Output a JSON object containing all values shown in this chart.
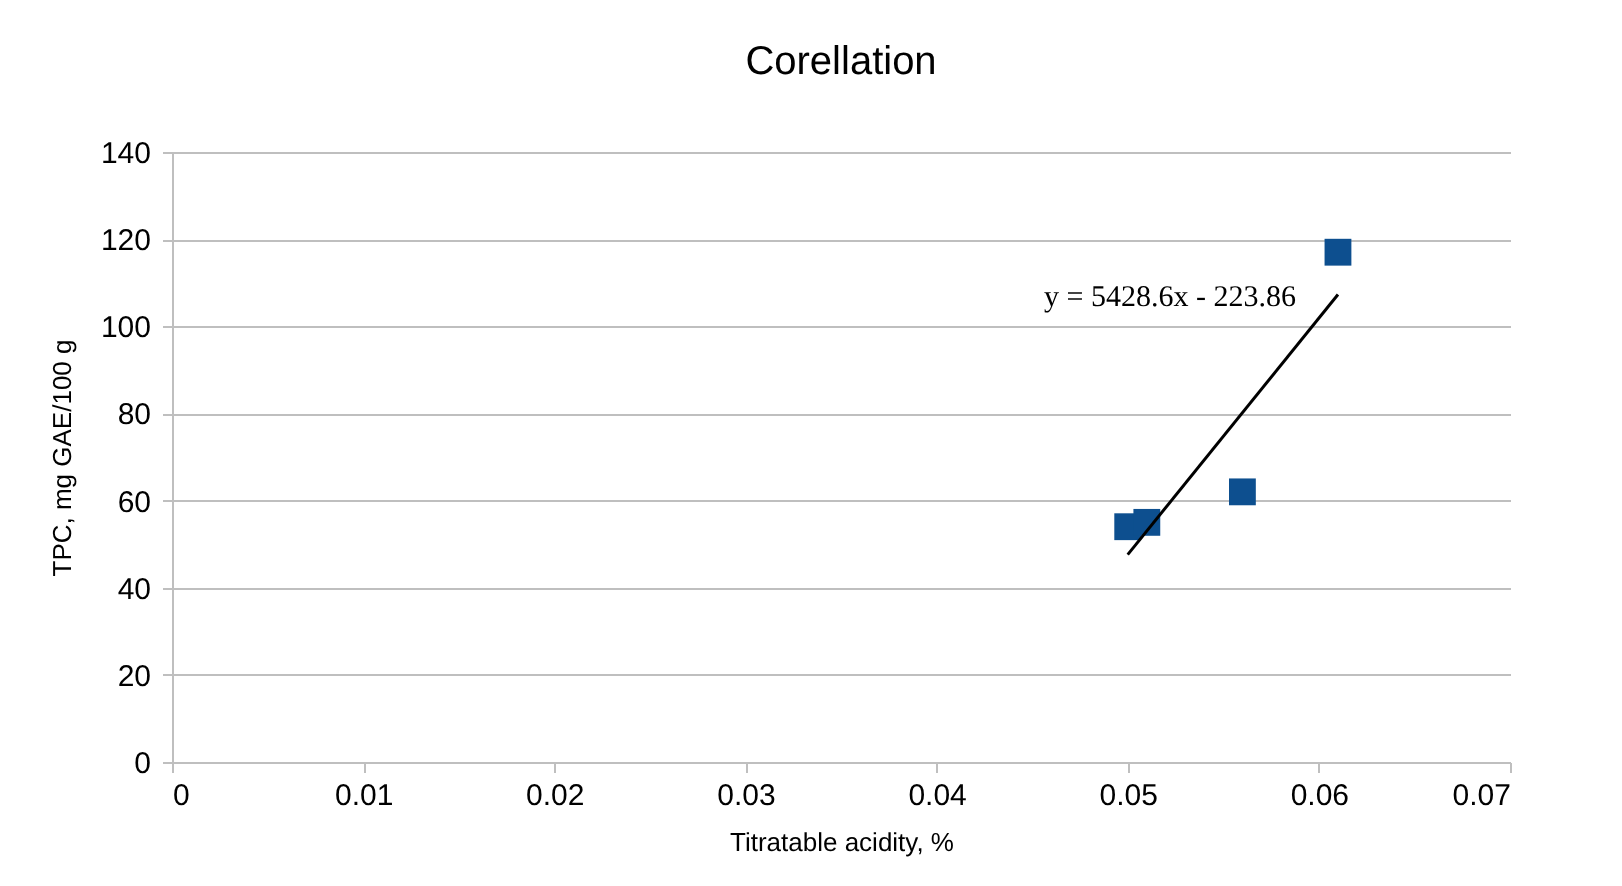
{
  "chart_data": {
    "type": "scatter",
    "title": "Corellation",
    "xlabel": "Titratable acidity, %",
    "ylabel": "TPC, mg GAE/100 g",
    "xlim": [
      0,
      0.07
    ],
    "xticks": [
      0,
      0.01,
      0.02,
      0.03,
      0.04,
      0.05,
      0.06,
      0.07
    ],
    "ylim": [
      0,
      140
    ],
    "yticks": [
      0,
      20,
      40,
      60,
      80,
      100,
      120,
      140
    ],
    "grid": "y",
    "series": [
      {
        "color": "#0d4f8f",
        "marker": "square",
        "x": [
          0.05,
          0.051,
          0.056,
          0.061
        ],
        "values": [
          54,
          55,
          62,
          117
        ]
      },
      {
        "type": "line",
        "color": "#000000",
        "x": [
          0.05,
          0.061
        ],
        "values": [
          47.6,
          107.3
        ]
      }
    ],
    "annotations": [
      "y = 5428.6x - 223.86"
    ]
  }
}
